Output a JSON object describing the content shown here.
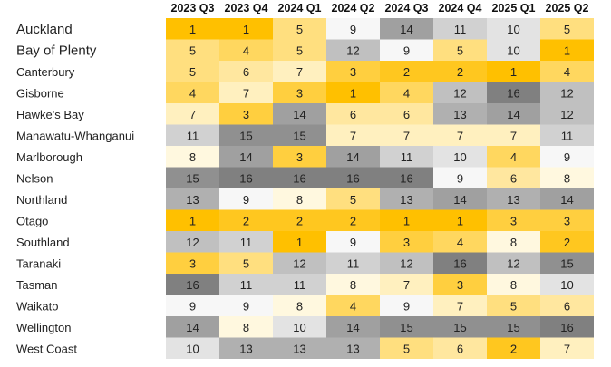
{
  "chart_data": {
    "type": "heatmap",
    "columns": [
      "2023 Q3",
      "2023 Q4",
      "2024 Q1",
      "2024 Q2",
      "2024 Q3",
      "2024 Q4",
      "2025 Q1",
      "2025 Q2"
    ],
    "rows": [
      {
        "label": "Auckland",
        "values": [
          1,
          1,
          5,
          9,
          14,
          11,
          10,
          5
        ]
      },
      {
        "label": "Bay of Plenty",
        "values": [
          5,
          4,
          5,
          12,
          9,
          5,
          10,
          1
        ]
      },
      {
        "label": "Canterbury",
        "values": [
          5,
          6,
          7,
          3,
          2,
          2,
          1,
          4
        ]
      },
      {
        "label": "Gisborne",
        "values": [
          4,
          7,
          3,
          1,
          4,
          12,
          16,
          12
        ]
      },
      {
        "label": "Hawke's Bay",
        "values": [
          7,
          3,
          14,
          6,
          6,
          13,
          14,
          12
        ]
      },
      {
        "label": "Manawatu-Whanganui",
        "values": [
          11,
          15,
          15,
          7,
          7,
          7,
          7,
          11
        ]
      },
      {
        "label": "Marlborough",
        "values": [
          8,
          14,
          3,
          14,
          11,
          10,
          4,
          9
        ]
      },
      {
        "label": "Nelson",
        "values": [
          15,
          16,
          16,
          16,
          16,
          9,
          6,
          8
        ]
      },
      {
        "label": "Northland",
        "values": [
          13,
          9,
          8,
          5,
          13,
          14,
          13,
          14
        ]
      },
      {
        "label": "Otago",
        "values": [
          1,
          2,
          2,
          2,
          1,
          1,
          3,
          3
        ]
      },
      {
        "label": "Southland",
        "values": [
          12,
          11,
          1,
          9,
          3,
          4,
          8,
          2
        ]
      },
      {
        "label": "Taranaki",
        "values": [
          3,
          5,
          12,
          11,
          12,
          16,
          12,
          15
        ]
      },
      {
        "label": "Tasman",
        "values": [
          16,
          11,
          11,
          8,
          7,
          3,
          8,
          10
        ]
      },
      {
        "label": "Waikato",
        "values": [
          9,
          9,
          8,
          4,
          9,
          7,
          5,
          6
        ]
      },
      {
        "label": "Wellington",
        "values": [
          14,
          8,
          10,
          14,
          15,
          15,
          15,
          16
        ]
      },
      {
        "label": "West Coast",
        "values": [
          10,
          13,
          13,
          13,
          5,
          6,
          2,
          7
        ]
      }
    ],
    "color_scale": {
      "1": "#ffc000",
      "2": "#ffc71f",
      "3": "#ffcf3f",
      "4": "#ffd75f",
      "5": "#ffdf7f",
      "6": "#ffe79f",
      "7": "#fff0bf",
      "8": "#fff8df",
      "9": "#f7f7f7",
      "10": "#e3e3e3",
      "11": "#d1d1d1",
      "12": "#c0c0c0",
      "13": "#b0b0b0",
      "14": "#a0a0a0",
      "15": "#909090",
      "16": "#808080"
    }
  }
}
